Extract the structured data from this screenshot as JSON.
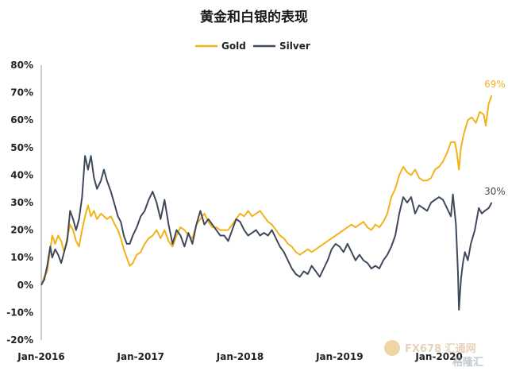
{
  "chart_data": {
    "type": "line",
    "title": "黄金和白银的表现",
    "xlabel": "",
    "ylabel": "",
    "y_ticks": [
      "80%",
      "70%",
      "60%",
      "50%",
      "40%",
      "30%",
      "20%",
      "10%",
      "0%",
      "-10%",
      "-20%"
    ],
    "x_ticks": [
      "Jan-2016",
      "Jan-2017",
      "Jan-2018",
      "Jan-2019",
      "Jan-2020"
    ],
    "ylim": [
      -20,
      80
    ],
    "xlim": [
      2016.0,
      2020.55
    ],
    "grid": false,
    "legend_position": "top-center",
    "series": [
      {
        "name": "Gold",
        "color": "#f2b21b",
        "end_label": "69%",
        "points": [
          [
            2016.0,
            0
          ],
          [
            2016.03,
            3
          ],
          [
            2016.06,
            5
          ],
          [
            2016.09,
            13
          ],
          [
            2016.11,
            18
          ],
          [
            2016.14,
            15
          ],
          [
            2016.17,
            18
          ],
          [
            2016.2,
            16
          ],
          [
            2016.23,
            12
          ],
          [
            2016.26,
            17
          ],
          [
            2016.29,
            22
          ],
          [
            2016.32,
            20
          ],
          [
            2016.35,
            16
          ],
          [
            2016.38,
            14
          ],
          [
            2016.41,
            20
          ],
          [
            2016.44,
            25
          ],
          [
            2016.47,
            29
          ],
          [
            2016.5,
            25
          ],
          [
            2016.53,
            27
          ],
          [
            2016.56,
            24
          ],
          [
            2016.6,
            26
          ],
          [
            2016.63,
            25
          ],
          [
            2016.66,
            24
          ],
          [
            2016.7,
            25
          ],
          [
            2016.74,
            22
          ],
          [
            2016.77,
            20
          ],
          [
            2016.8,
            17
          ],
          [
            2016.83,
            13
          ],
          [
            2016.86,
            10
          ],
          [
            2016.89,
            7
          ],
          [
            2016.92,
            8
          ],
          [
            2016.96,
            11
          ],
          [
            2017.0,
            12
          ],
          [
            2017.04,
            15
          ],
          [
            2017.08,
            17
          ],
          [
            2017.12,
            18
          ],
          [
            2017.16,
            20
          ],
          [
            2017.2,
            17
          ],
          [
            2017.24,
            20
          ],
          [
            2017.28,
            16
          ],
          [
            2017.32,
            14
          ],
          [
            2017.36,
            18
          ],
          [
            2017.4,
            21
          ],
          [
            2017.44,
            20
          ],
          [
            2017.48,
            18
          ],
          [
            2017.52,
            17
          ],
          [
            2017.56,
            22
          ],
          [
            2017.6,
            24
          ],
          [
            2017.64,
            26
          ],
          [
            2017.68,
            23
          ],
          [
            2017.72,
            21
          ],
          [
            2017.76,
            21
          ],
          [
            2017.8,
            20
          ],
          [
            2017.84,
            20
          ],
          [
            2017.88,
            20
          ],
          [
            2017.92,
            22
          ],
          [
            2017.96,
            24
          ],
          [
            2018.0,
            26
          ],
          [
            2018.04,
            25
          ],
          [
            2018.08,
            27
          ],
          [
            2018.12,
            25
          ],
          [
            2018.16,
            26
          ],
          [
            2018.2,
            27
          ],
          [
            2018.24,
            25
          ],
          [
            2018.28,
            23
          ],
          [
            2018.32,
            22
          ],
          [
            2018.36,
            20
          ],
          [
            2018.4,
            18
          ],
          [
            2018.44,
            17
          ],
          [
            2018.48,
            15
          ],
          [
            2018.52,
            14
          ],
          [
            2018.56,
            12
          ],
          [
            2018.6,
            11
          ],
          [
            2018.64,
            12
          ],
          [
            2018.68,
            13
          ],
          [
            2018.72,
            12
          ],
          [
            2018.76,
            13
          ],
          [
            2018.8,
            14
          ],
          [
            2018.84,
            15
          ],
          [
            2018.88,
            16
          ],
          [
            2018.92,
            17
          ],
          [
            2018.96,
            18
          ],
          [
            2019.0,
            19
          ],
          [
            2019.04,
            20
          ],
          [
            2019.08,
            21
          ],
          [
            2019.12,
            22
          ],
          [
            2019.16,
            21
          ],
          [
            2019.2,
            22
          ],
          [
            2019.24,
            23
          ],
          [
            2019.28,
            21
          ],
          [
            2019.32,
            20
          ],
          [
            2019.36,
            22
          ],
          [
            2019.4,
            21
          ],
          [
            2019.44,
            23
          ],
          [
            2019.48,
            26
          ],
          [
            2019.52,
            32
          ],
          [
            2019.56,
            35
          ],
          [
            2019.6,
            40
          ],
          [
            2019.64,
            43
          ],
          [
            2019.68,
            41
          ],
          [
            2019.72,
            40
          ],
          [
            2019.76,
            42
          ],
          [
            2019.8,
            39
          ],
          [
            2019.84,
            38
          ],
          [
            2019.88,
            38
          ],
          [
            2019.92,
            39
          ],
          [
            2019.96,
            42
          ],
          [
            2020.0,
            43
          ],
          [
            2020.04,
            45
          ],
          [
            2020.08,
            48
          ],
          [
            2020.12,
            52
          ],
          [
            2020.16,
            52
          ],
          [
            2020.18,
            48
          ],
          [
            2020.2,
            42
          ],
          [
            2020.22,
            50
          ],
          [
            2020.25,
            55
          ],
          [
            2020.29,
            60
          ],
          [
            2020.33,
            61
          ],
          [
            2020.37,
            59
          ],
          [
            2020.41,
            63
          ],
          [
            2020.45,
            62
          ],
          [
            2020.47,
            58
          ],
          [
            2020.5,
            66
          ],
          [
            2020.53,
            69
          ]
        ]
      },
      {
        "name": "Silver",
        "color": "#3e4a5b",
        "end_label": "30%",
        "points": [
          [
            2016.0,
            0
          ],
          [
            2016.03,
            2
          ],
          [
            2016.06,
            7
          ],
          [
            2016.09,
            14
          ],
          [
            2016.11,
            10
          ],
          [
            2016.14,
            13
          ],
          [
            2016.17,
            11
          ],
          [
            2016.2,
            8
          ],
          [
            2016.23,
            12
          ],
          [
            2016.26,
            16
          ],
          [
            2016.29,
            27
          ],
          [
            2016.32,
            24
          ],
          [
            2016.35,
            20
          ],
          [
            2016.38,
            24
          ],
          [
            2016.41,
            32
          ],
          [
            2016.44,
            47
          ],
          [
            2016.47,
            42
          ],
          [
            2016.5,
            47
          ],
          [
            2016.53,
            39
          ],
          [
            2016.56,
            35
          ],
          [
            2016.6,
            38
          ],
          [
            2016.63,
            42
          ],
          [
            2016.66,
            38
          ],
          [
            2016.7,
            34
          ],
          [
            2016.74,
            29
          ],
          [
            2016.77,
            25
          ],
          [
            2016.8,
            23
          ],
          [
            2016.83,
            18
          ],
          [
            2016.86,
            15
          ],
          [
            2016.89,
            15
          ],
          [
            2016.92,
            18
          ],
          [
            2016.96,
            21
          ],
          [
            2017.0,
            25
          ],
          [
            2017.04,
            27
          ],
          [
            2017.08,
            31
          ],
          [
            2017.12,
            34
          ],
          [
            2017.16,
            30
          ],
          [
            2017.2,
            24
          ],
          [
            2017.24,
            31
          ],
          [
            2017.28,
            22
          ],
          [
            2017.32,
            15
          ],
          [
            2017.36,
            20
          ],
          [
            2017.4,
            18
          ],
          [
            2017.44,
            14
          ],
          [
            2017.48,
            19
          ],
          [
            2017.52,
            15
          ],
          [
            2017.56,
            22
          ],
          [
            2017.6,
            27
          ],
          [
            2017.64,
            22
          ],
          [
            2017.68,
            24
          ],
          [
            2017.72,
            22
          ],
          [
            2017.76,
            20
          ],
          [
            2017.8,
            18
          ],
          [
            2017.84,
            18
          ],
          [
            2017.88,
            16
          ],
          [
            2017.92,
            20
          ],
          [
            2017.96,
            24
          ],
          [
            2018.0,
            23
          ],
          [
            2018.04,
            20
          ],
          [
            2018.08,
            18
          ],
          [
            2018.12,
            19
          ],
          [
            2018.16,
            20
          ],
          [
            2018.2,
            18
          ],
          [
            2018.24,
            19
          ],
          [
            2018.28,
            18
          ],
          [
            2018.32,
            20
          ],
          [
            2018.36,
            17
          ],
          [
            2018.4,
            14
          ],
          [
            2018.44,
            12
          ],
          [
            2018.48,
            9
          ],
          [
            2018.52,
            6
          ],
          [
            2018.56,
            4
          ],
          [
            2018.6,
            3
          ],
          [
            2018.64,
            5
          ],
          [
            2018.68,
            4
          ],
          [
            2018.72,
            7
          ],
          [
            2018.76,
            5
          ],
          [
            2018.8,
            3
          ],
          [
            2018.84,
            6
          ],
          [
            2018.88,
            9
          ],
          [
            2018.92,
            13
          ],
          [
            2018.96,
            15
          ],
          [
            2019.0,
            14
          ],
          [
            2019.04,
            12
          ],
          [
            2019.08,
            15
          ],
          [
            2019.12,
            12
          ],
          [
            2019.16,
            9
          ],
          [
            2019.2,
            11
          ],
          [
            2019.24,
            9
          ],
          [
            2019.28,
            8
          ],
          [
            2019.32,
            6
          ],
          [
            2019.36,
            7
          ],
          [
            2019.4,
            6
          ],
          [
            2019.44,
            9
          ],
          [
            2019.48,
            11
          ],
          [
            2019.52,
            14
          ],
          [
            2019.56,
            18
          ],
          [
            2019.6,
            26
          ],
          [
            2019.64,
            32
          ],
          [
            2019.68,
            30
          ],
          [
            2019.72,
            32
          ],
          [
            2019.76,
            26
          ],
          [
            2019.8,
            29
          ],
          [
            2019.84,
            28
          ],
          [
            2019.88,
            27
          ],
          [
            2019.92,
            30
          ],
          [
            2019.96,
            31
          ],
          [
            2020.0,
            32
          ],
          [
            2020.04,
            31
          ],
          [
            2020.08,
            28
          ],
          [
            2020.12,
            25
          ],
          [
            2020.14,
            33
          ],
          [
            2020.17,
            22
          ],
          [
            2020.19,
            5
          ],
          [
            2020.2,
            -9
          ],
          [
            2020.22,
            2
          ],
          [
            2020.24,
            8
          ],
          [
            2020.26,
            12
          ],
          [
            2020.29,
            9
          ],
          [
            2020.32,
            15
          ],
          [
            2020.36,
            20
          ],
          [
            2020.4,
            28
          ],
          [
            2020.43,
            26
          ],
          [
            2020.46,
            27
          ],
          [
            2020.5,
            28
          ],
          [
            2020.53,
            30
          ]
        ]
      }
    ]
  },
  "watermark": {
    "text": "FX678 汇通网",
    "sub": "格隆汇"
  }
}
